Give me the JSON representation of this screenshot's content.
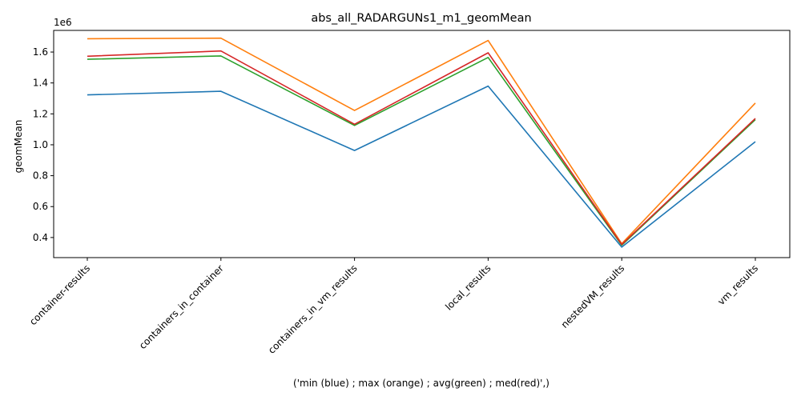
{
  "chart_data": {
    "type": "line",
    "title": "abs_all_RADARGUNs1_m1_geomMean",
    "xlabel": "('min (blue) ; max (orange) ; avg(green) ; med(red)',)",
    "ylabel": "geomMean",
    "y_offset_label": "1e6",
    "categories": [
      "container-results",
      "containers_in_container",
      "containers_in_vm_results",
      "local_results",
      "nestedVM_results",
      "vm_results"
    ],
    "y_ticks": [
      "0.4",
      "0.6",
      "0.8",
      "1.0",
      "1.2",
      "1.4",
      "1.6"
    ],
    "y_tick_values": [
      0.4,
      0.6,
      0.8,
      1.0,
      1.2,
      1.4,
      1.6
    ],
    "ylim": [
      0.27,
      1.74
    ],
    "grid": false,
    "series": [
      {
        "color": "#1f77b4",
        "values": [
          1.323,
          1.346,
          0.963,
          1.38,
          0.338,
          1.02
        ]
      },
      {
        "color": "#ff7f0e",
        "values": [
          1.686,
          1.69,
          1.222,
          1.675,
          0.36,
          1.27
        ]
      },
      {
        "color": "#2ca02c",
        "values": [
          1.553,
          1.575,
          1.125,
          1.565,
          0.35,
          1.163
        ]
      },
      {
        "color": "#d62728",
        "values": [
          1.573,
          1.607,
          1.133,
          1.595,
          0.355,
          1.17
        ]
      }
    ]
  }
}
